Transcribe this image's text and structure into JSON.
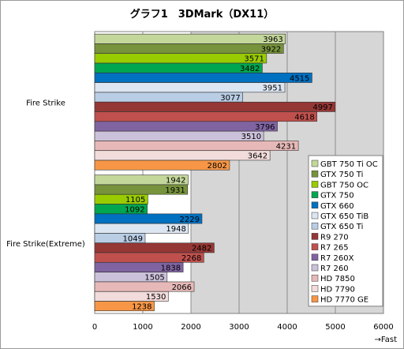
{
  "chart_data": {
    "type": "bar",
    "orientation": "horizontal",
    "title": "グラフ1　3DMark（DX11）",
    "axis_note": "→Fast",
    "xlim": [
      0,
      6000
    ],
    "x_ticks": [
      0,
      1000,
      2000,
      3000,
      4000,
      5000,
      6000
    ],
    "grid": true,
    "legend_position": "right",
    "categories": [
      "Fire Strike",
      "Fire Strike(Extreme)"
    ],
    "series": [
      {
        "name": "GBT 750 Ti OC",
        "color": "#c4d79b",
        "values": [
          3963,
          1942
        ]
      },
      {
        "name": "GTX 750 Ti",
        "color": "#77933c",
        "values": [
          3922,
          1931
        ]
      },
      {
        "name": "GBT 750 OC",
        "color": "#99cc00",
        "values": [
          3571,
          1105
        ]
      },
      {
        "name": "GTX 750",
        "color": "#00a650",
        "values": [
          3482,
          1092
        ]
      },
      {
        "name": "GTX 660",
        "color": "#0070c0",
        "values": [
          4515,
          2229
        ]
      },
      {
        "name": "GTX 650 TiB",
        "color": "#dce6f2",
        "values": [
          3951,
          1948
        ]
      },
      {
        "name": "GTX 650 Ti",
        "color": "#b9cde5",
        "values": [
          3077,
          1049
        ]
      },
      {
        "name": "R9 270",
        "color": "#953735",
        "values": [
          4997,
          2482
        ]
      },
      {
        "name": "R7 265",
        "color": "#c0504d",
        "values": [
          4618,
          2268
        ]
      },
      {
        "name": "R7 260X",
        "color": "#8064a2",
        "values": [
          3796,
          1838
        ]
      },
      {
        "name": "R7 260",
        "color": "#ccc1da",
        "values": [
          3510,
          1505
        ]
      },
      {
        "name": "HD 7850",
        "color": "#e6b9b8",
        "values": [
          4231,
          2066
        ]
      },
      {
        "name": "HD 7790",
        "color": "#f2dcdb",
        "values": [
          3642,
          1530
        ]
      },
      {
        "name": "HD 7770 GE",
        "color": "#f79646",
        "values": [
          2802,
          1238
        ]
      }
    ]
  }
}
